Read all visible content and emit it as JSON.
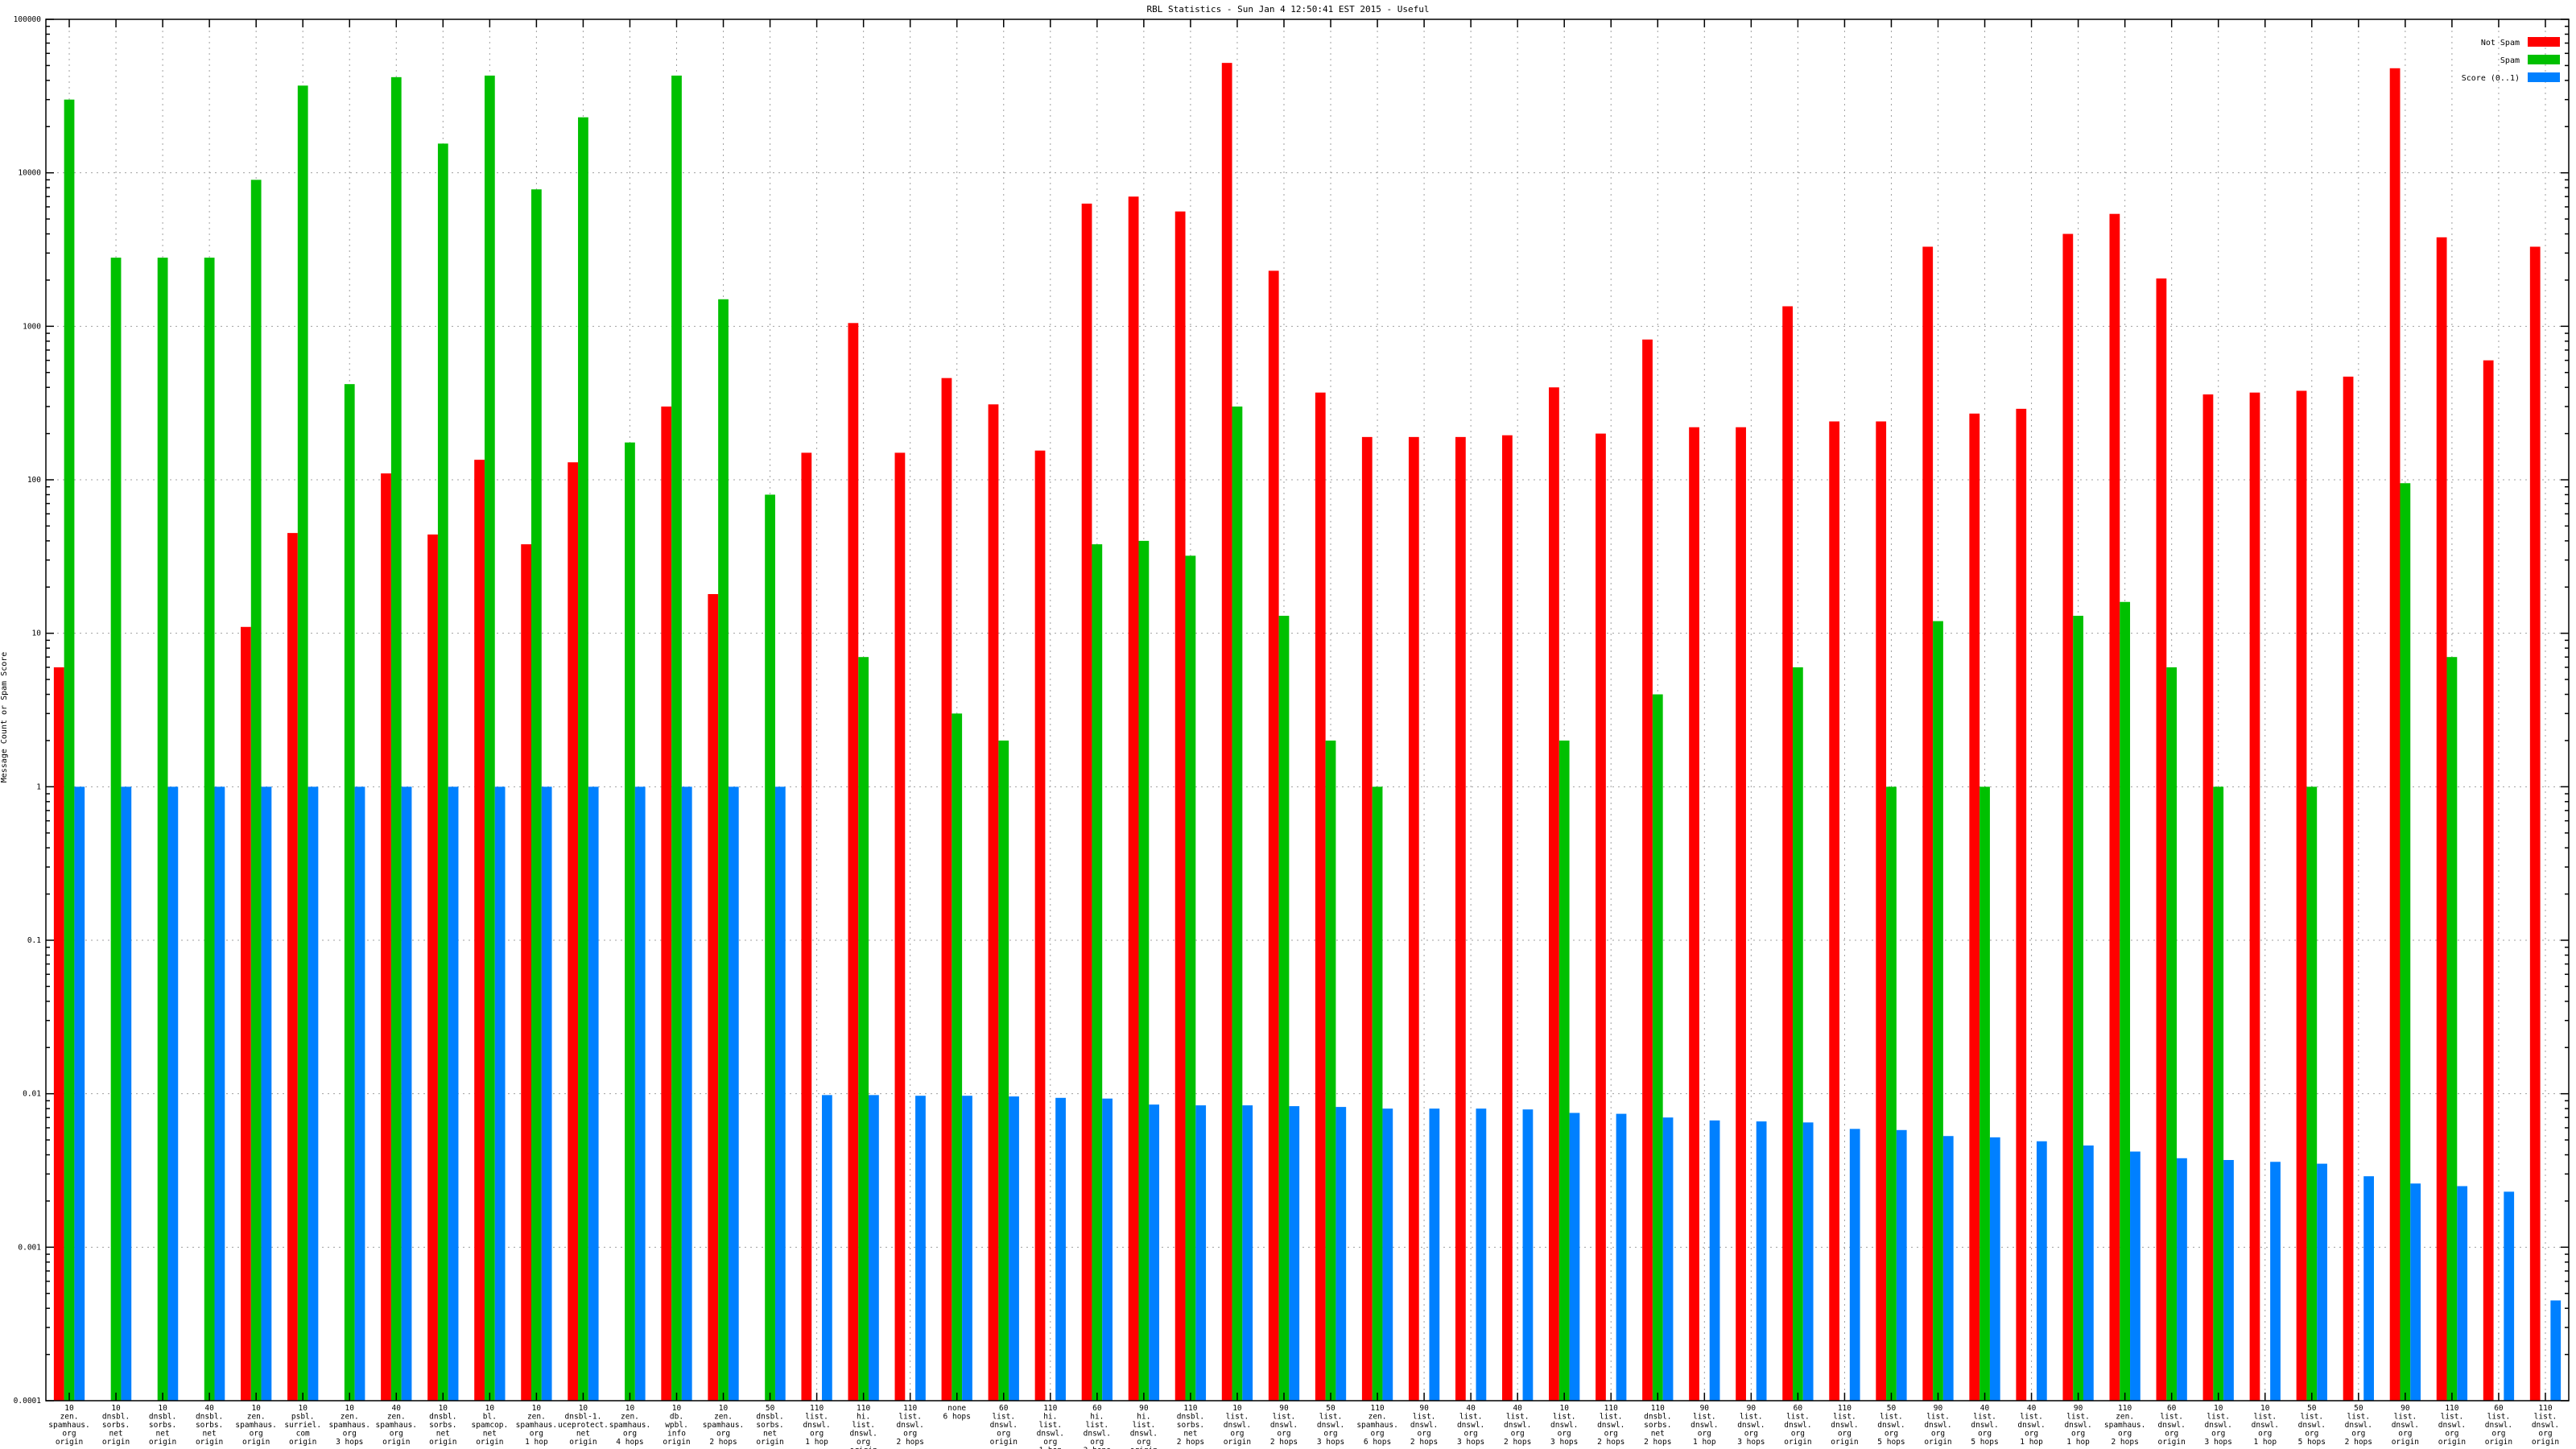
{
  "chart_data": {
    "type": "bar",
    "title": "RBL Statistics - Sun Jan  4 12:50:41 EST 2015 - Useful",
    "xlabel": "",
    "ylabel": "Message Count or Spam Score",
    "yscale": "log",
    "ylim": [
      0.0001,
      100000
    ],
    "yticks": [
      {
        "value": 0.0001,
        "label": "0.0001"
      },
      {
        "value": 0.001,
        "label": "0.001"
      },
      {
        "value": 0.01,
        "label": "0.01"
      },
      {
        "value": 0.1,
        "label": "0.1"
      },
      {
        "value": 1,
        "label": "1"
      },
      {
        "value": 10,
        "label": "10"
      },
      {
        "value": 100,
        "label": "100"
      },
      {
        "value": 1000,
        "label": "1000"
      },
      {
        "value": 10000,
        "label": "10000"
      },
      {
        "value": 100000,
        "label": "100000"
      }
    ],
    "grid": true,
    "legend_position": "top-right",
    "categories": [
      [
        "10",
        "zen.",
        "spamhaus.",
        "org",
        "origin"
      ],
      [
        "10",
        "dnsbl.",
        "sorbs.",
        "net",
        "origin"
      ],
      [
        "10",
        "dnsbl.",
        "sorbs.",
        "net",
        "origin"
      ],
      [
        "40",
        "dnsbl.",
        "sorbs.",
        "net",
        "origin"
      ],
      [
        "10",
        "zen.",
        "spamhaus.",
        "org",
        "origin"
      ],
      [
        "10",
        "psbl.",
        "surriel.",
        "com",
        "origin"
      ],
      [
        "10",
        "zen.",
        "spamhaus.",
        "org",
        "3 hops"
      ],
      [
        "40",
        "zen.",
        "spamhaus.",
        "org",
        "origin"
      ],
      [
        "10",
        "dnsbl.",
        "sorbs.",
        "net",
        "origin"
      ],
      [
        "10",
        "bl.",
        "spamcop.",
        "net",
        "origin"
      ],
      [
        "10",
        "zen.",
        "spamhaus.",
        "org",
        "1 hop"
      ],
      [
        "10",
        "dnsbl-1.",
        "uceprotect.",
        "net",
        "origin"
      ],
      [
        "10",
        "zen.",
        "spamhaus.",
        "org",
        "4 hops"
      ],
      [
        "10",
        "db.",
        "wpbl.",
        "info",
        "origin"
      ],
      [
        "10",
        "zen.",
        "spamhaus.",
        "org",
        "2 hops"
      ],
      [
        "50",
        "dnsbl.",
        "sorbs.",
        "net",
        "origin"
      ],
      [
        "110",
        "list.",
        "dnswl.",
        "org",
        "1 hop"
      ],
      [
        "110",
        "hi.",
        "list.",
        "dnswl.",
        "org",
        "origin"
      ],
      [
        "110",
        "list.",
        "dnswl.",
        "org",
        "2 hops"
      ],
      [
        "none",
        "6 hops"
      ],
      [
        "60",
        "list.",
        "dnswl.",
        "org",
        "origin"
      ],
      [
        "110",
        "hi.",
        "list.",
        "dnswl.",
        "org",
        "1 hop"
      ],
      [
        "60",
        "hi.",
        "list.",
        "dnswl.",
        "org",
        "3 hops"
      ],
      [
        "90",
        "hi.",
        "list.",
        "dnswl.",
        "org",
        "origin"
      ],
      [
        "110",
        "dnsbl.",
        "sorbs.",
        "net",
        "2 hops"
      ],
      [
        "10",
        "list.",
        "dnswl.",
        "org",
        "origin"
      ],
      [
        "90",
        "list.",
        "dnswl.",
        "org",
        "2 hops"
      ],
      [
        "50",
        "list.",
        "dnswl.",
        "org",
        "3 hops"
      ],
      [
        "110",
        "zen.",
        "spamhaus.",
        "org",
        "6 hops"
      ],
      [
        "90",
        "list.",
        "dnswl.",
        "org",
        "2 hops"
      ],
      [
        "40",
        "list.",
        "dnswl.",
        "org",
        "3 hops"
      ],
      [
        "40",
        "list.",
        "dnswl.",
        "org",
        "2 hops"
      ],
      [
        "10",
        "list.",
        "dnswl.",
        "org",
        "3 hops"
      ],
      [
        "110",
        "list.",
        "dnswl.",
        "org",
        "2 hops"
      ],
      [
        "110",
        "dnsbl.",
        "sorbs.",
        "net",
        "2 hops"
      ],
      [
        "90",
        "list.",
        "dnswl.",
        "org",
        "1 hop"
      ],
      [
        "90",
        "list.",
        "dnswl.",
        "org",
        "3 hops"
      ],
      [
        "60",
        "list.",
        "dnswl.",
        "org",
        "origin"
      ],
      [
        "110",
        "list.",
        "dnswl.",
        "org",
        "origin"
      ],
      [
        "50",
        "list.",
        "dnswl.",
        "org",
        "5 hops"
      ],
      [
        "90",
        "list.",
        "dnswl.",
        "org",
        "origin"
      ],
      [
        "40",
        "list.",
        "dnswl.",
        "org",
        "5 hops"
      ],
      [
        "40",
        "list.",
        "dnswl.",
        "org",
        "1 hop"
      ],
      [
        "90",
        "list.",
        "dnswl.",
        "org",
        "1 hop"
      ],
      [
        "110",
        "zen.",
        "spamhaus.",
        "org",
        "2 hops"
      ],
      [
        "60",
        "list.",
        "dnswl.",
        "org",
        "origin"
      ],
      [
        "10",
        "list.",
        "dnswl.",
        "org",
        "3 hops"
      ],
      [
        "10",
        "list.",
        "dnswl.",
        "org",
        "1 hop"
      ],
      [
        "50",
        "list.",
        "dnswl.",
        "org",
        "5 hops"
      ],
      [
        "50",
        "list.",
        "dnswl.",
        "org",
        "2 hops"
      ],
      [
        "90",
        "list.",
        "dnswl.",
        "org",
        "origin"
      ],
      [
        "110",
        "list.",
        "dnswl.",
        "org",
        "origin"
      ],
      [
        "60",
        "list.",
        "dnswl.",
        "org",
        "origin"
      ],
      [
        "110",
        "list.",
        "dnswl.",
        "org",
        "origin"
      ]
    ],
    "series": [
      {
        "name": "Not Spam",
        "color": "#ff0000",
        "values": [
          6,
          null,
          null,
          null,
          11,
          45,
          null,
          110,
          44,
          135,
          38,
          130,
          null,
          300,
          18,
          null,
          150,
          1050,
          150,
          460,
          310,
          155,
          6300,
          7000,
          5600,
          52000,
          2300,
          370,
          190,
          190,
          190,
          195,
          400,
          200,
          820,
          220,
          220,
          1350,
          240,
          240,
          3300,
          270,
          290,
          4000,
          5400,
          2050,
          360,
          370,
          380,
          470,
          48000,
          3800,
          600,
          3300
        ]
      },
      {
        "name": "Spam",
        "color": "#00c000",
        "values": [
          30000,
          2800,
          2800,
          2800,
          9000,
          37000,
          420,
          42000,
          15500,
          43000,
          7800,
          23000,
          175,
          43000,
          1500,
          80,
          null,
          7,
          null,
          3,
          2,
          null,
          38,
          40,
          32,
          300,
          13,
          2,
          1,
          null,
          null,
          null,
          2,
          null,
          4,
          null,
          null,
          6,
          null,
          1,
          12,
          1,
          null,
          13,
          16,
          6,
          1,
          null,
          1,
          null,
          95,
          7,
          null,
          null
        ]
      },
      {
        "name": "Score (0..1)",
        "color": "#0080ff",
        "values": [
          1,
          1,
          1,
          1,
          1,
          1,
          1,
          1,
          1,
          1,
          1,
          1,
          1,
          1,
          1,
          1,
          0.0098,
          0.0098,
          0.0097,
          0.0097,
          0.0096,
          0.0094,
          0.0093,
          0.0085,
          0.0084,
          0.0084,
          0.0083,
          0.0082,
          0.008,
          0.008,
          0.008,
          0.0079,
          0.0075,
          0.0074,
          0.007,
          0.0067,
          0.0066,
          0.0065,
          0.0059,
          0.0058,
          0.0053,
          0.0052,
          0.0049,
          0.0046,
          0.0042,
          0.0038,
          0.0037,
          0.0036,
          0.0035,
          0.0029,
          0.0026,
          0.0025,
          0.0023,
          0.00045
        ]
      }
    ]
  }
}
